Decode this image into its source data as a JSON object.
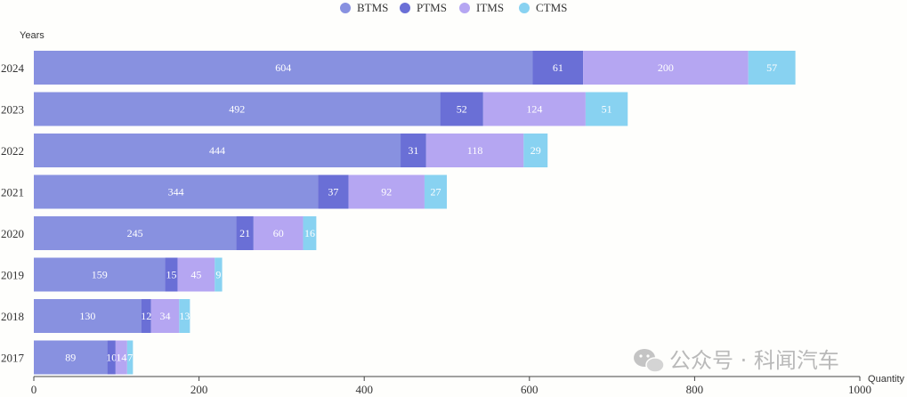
{
  "watermark": {
    "text": "公众号 · 科闻汽车"
  },
  "chart_data": {
    "type": "bar",
    "orientation": "horizontal",
    "stacked": true,
    "categories": [
      "2024",
      "2023",
      "2022",
      "2021",
      "2020",
      "2019",
      "2018",
      "2017"
    ],
    "series": [
      {
        "name": "BTMS",
        "color": "#8891e0",
        "values": [
          604,
          492,
          444,
          344,
          245,
          159,
          130,
          89
        ]
      },
      {
        "name": "PTMS",
        "color": "#6a6fd6",
        "values": [
          61,
          52,
          31,
          37,
          21,
          15,
          12,
          10
        ]
      },
      {
        "name": "ITMS",
        "color": "#b5a6f2",
        "values": [
          200,
          124,
          118,
          92,
          60,
          45,
          34,
          14
        ]
      },
      {
        "name": "CTMS",
        "color": "#88d2f1",
        "values": [
          57,
          51,
          29,
          27,
          16,
          9,
          13,
          7
        ]
      }
    ],
    "xlabel": "Quantity",
    "ylabel": "Years",
    "xlim": [
      0,
      1000
    ],
    "xticks": [
      "0",
      "200",
      "400",
      "600",
      "800",
      "1000"
    ],
    "grid": false,
    "legend_position": "top-center"
  }
}
